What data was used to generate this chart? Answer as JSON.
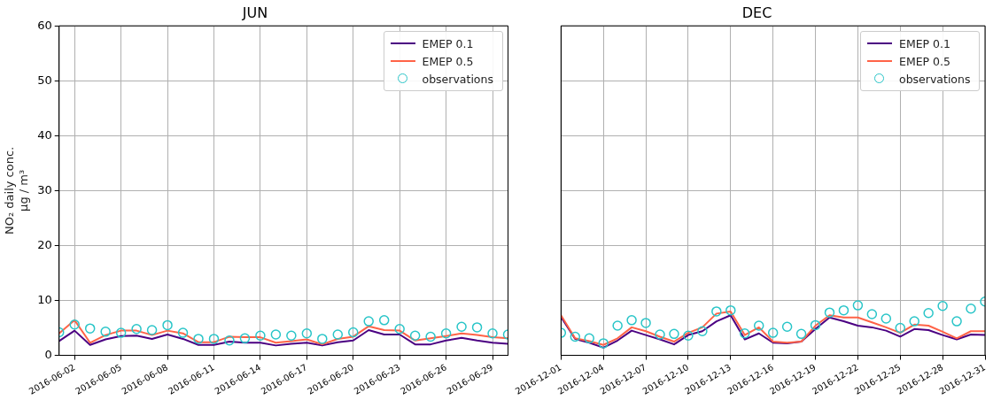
{
  "chart_data": [
    {
      "type": "line",
      "title": "JUN",
      "ylabel": "NO₂ daily conc.\nµg / m³",
      "legend": "top right",
      "grid": true,
      "x": [
        "2016-06-01",
        "2016-06-02",
        "2016-06-03",
        "2016-06-04",
        "2016-06-05",
        "2016-06-06",
        "2016-06-07",
        "2016-06-08",
        "2016-06-09",
        "2016-06-10",
        "2016-06-11",
        "2016-06-12",
        "2016-06-13",
        "2016-06-14",
        "2016-06-15",
        "2016-06-16",
        "2016-06-17",
        "2016-06-18",
        "2016-06-19",
        "2016-06-20",
        "2016-06-21",
        "2016-06-22",
        "2016-06-23",
        "2016-06-24",
        "2016-06-25",
        "2016-06-26",
        "2016-06-27",
        "2016-06-28",
        "2016-06-29",
        "2016-06-30"
      ],
      "xlim": [
        "2016-06-01",
        "2016-06-30"
      ],
      "xticks": [
        "2016-06-02",
        "2016-06-05",
        "2016-06-08",
        "2016-06-11",
        "2016-06-14",
        "2016-06-17",
        "2016-06-20",
        "2016-06-23",
        "2016-06-26",
        "2016-06-29"
      ],
      "ylim": [
        0,
        60
      ],
      "yticks": [
        0,
        10,
        20,
        30,
        40,
        50,
        60
      ],
      "series": [
        {
          "name": "EMEP 0.1",
          "type": "line",
          "color": "#4b0082",
          "values": [
            2.6,
            4.5,
            1.9,
            2.9,
            3.5,
            3.6,
            3.0,
            3.8,
            3.0,
            1.9,
            1.9,
            2.5,
            2.3,
            2.3,
            1.8,
            2.1,
            2.3,
            1.8,
            2.4,
            2.7,
            4.6,
            3.8,
            3.8,
            2.0,
            2.0,
            2.7,
            3.2,
            2.7,
            2.3,
            2.1
          ]
        },
        {
          "name": "EMEP 0.5",
          "type": "line",
          "color": "#ff6347",
          "values": [
            4.0,
            6.4,
            2.3,
            3.7,
            4.5,
            4.5,
            3.7,
            4.5,
            4.0,
            2.4,
            2.4,
            3.4,
            3.3,
            3.3,
            2.3,
            2.6,
            2.9,
            2.0,
            3.0,
            3.4,
            5.3,
            4.6,
            4.5,
            2.7,
            3.1,
            3.5,
            4.0,
            3.7,
            3.3,
            3.1
          ]
        },
        {
          "name": "observations",
          "type": "scatter",
          "marker": "circle",
          "color": "#29c5c8",
          "values": [
            4.2,
            5.6,
            4.9,
            4.3,
            4.1,
            4.8,
            4.6,
            5.5,
            4.1,
            3.0,
            3.0,
            2.7,
            3.1,
            3.6,
            3.8,
            3.6,
            4.0,
            3.0,
            3.8,
            4.2,
            6.2,
            6.4,
            4.8,
            3.6,
            3.4,
            4.0,
            5.2,
            5.1,
            4.0,
            3.8
          ]
        }
      ]
    },
    {
      "type": "line",
      "title": "DEC",
      "legend": "top right",
      "grid": true,
      "tick_labels": "x",
      "x": [
        "2016-12-01",
        "2016-12-02",
        "2016-12-03",
        "2016-12-04",
        "2016-12-05",
        "2016-12-06",
        "2016-12-07",
        "2016-12-08",
        "2016-12-09",
        "2016-12-10",
        "2016-12-11",
        "2016-12-12",
        "2016-12-13",
        "2016-12-14",
        "2016-12-15",
        "2016-12-16",
        "2016-12-17",
        "2016-12-18",
        "2016-12-19",
        "2016-12-20",
        "2016-12-21",
        "2016-12-22",
        "2016-12-23",
        "2016-12-24",
        "2016-12-25",
        "2016-12-26",
        "2016-12-27",
        "2016-12-28",
        "2016-12-29",
        "2016-12-30",
        "2016-12-31"
      ],
      "xlim": [
        "2016-12-01",
        "2016-12-31"
      ],
      "xticks": [
        "2016-12-01",
        "2016-12-04",
        "2016-12-07",
        "2016-12-10",
        "2016-12-13",
        "2016-12-16",
        "2016-12-19",
        "2016-12-22",
        "2016-12-25",
        "2016-12-28",
        "2016-12-31"
      ],
      "ylim": [
        0,
        60
      ],
      "yticks": [
        0,
        10,
        20,
        30,
        40,
        50,
        60
      ],
      "series": [
        {
          "name": "EMEP 0.1",
          "type": "line",
          "color": "#4b0082",
          "values": [
            7.0,
            3.0,
            2.3,
            1.4,
            2.7,
            4.5,
            3.7,
            2.9,
            2.0,
            3.7,
            4.4,
            6.2,
            7.3,
            2.9,
            4.0,
            2.3,
            2.2,
            2.5,
            4.8,
            6.9,
            6.2,
            5.4,
            5.1,
            4.5,
            3.4,
            4.8,
            4.6,
            3.7,
            2.9,
            3.8,
            3.7
          ]
        },
        {
          "name": "EMEP 0.5",
          "type": "line",
          "color": "#ff6347",
          "values": [
            7.3,
            3.1,
            2.6,
            1.9,
            3.1,
            5.1,
            4.4,
            3.4,
            2.5,
            4.1,
            5.1,
            7.6,
            8.0,
            3.7,
            5.1,
            2.5,
            2.3,
            2.5,
            5.4,
            7.3,
            6.9,
            6.9,
            6.0,
            5.1,
            4.1,
            5.6,
            5.4,
            4.3,
            3.1,
            4.4,
            4.4
          ]
        },
        {
          "name": "observations",
          "type": "scatter",
          "marker": "circle",
          "color": "#29c5c8",
          "values": [
            4.1,
            3.4,
            3.1,
            2.2,
            5.4,
            6.4,
            5.9,
            3.8,
            3.9,
            3.6,
            4.4,
            8.0,
            8.2,
            4.0,
            5.4,
            4.1,
            5.2,
            3.9,
            5.5,
            7.8,
            8.2,
            9.1,
            7.5,
            6.7,
            5.0,
            6.2,
            7.7,
            9.0,
            6.2,
            8.5,
            9.8
          ]
        }
      ]
    }
  ]
}
